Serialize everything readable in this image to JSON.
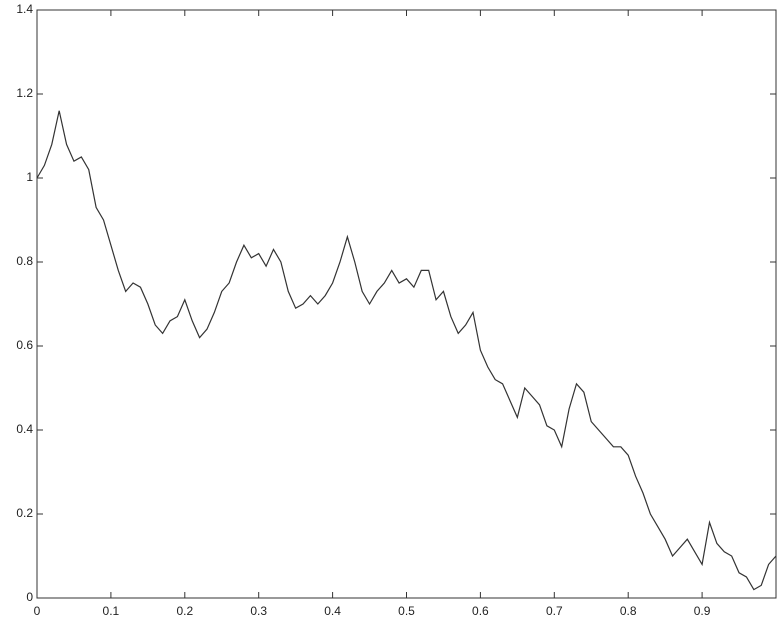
{
  "chart_data": {
    "type": "line",
    "x": [
      0,
      0.01,
      0.02,
      0.03,
      0.04,
      0.05,
      0.06,
      0.07,
      0.08,
      0.09,
      0.1,
      0.11,
      0.12,
      0.13,
      0.14,
      0.15,
      0.16,
      0.17,
      0.18,
      0.19,
      0.2,
      0.21,
      0.22,
      0.23,
      0.24,
      0.25,
      0.26,
      0.27,
      0.28,
      0.29,
      0.3,
      0.31,
      0.32,
      0.33,
      0.34,
      0.35,
      0.36,
      0.37,
      0.38,
      0.39,
      0.4,
      0.41,
      0.42,
      0.43,
      0.44,
      0.45,
      0.46,
      0.47,
      0.48,
      0.49,
      0.5,
      0.51,
      0.52,
      0.53,
      0.54,
      0.55,
      0.56,
      0.57,
      0.58,
      0.59,
      0.6,
      0.61,
      0.62,
      0.63,
      0.64,
      0.65,
      0.66,
      0.67,
      0.68,
      0.69,
      0.7,
      0.71,
      0.72,
      0.73,
      0.74,
      0.75,
      0.76,
      0.77,
      0.78,
      0.79,
      0.8,
      0.81,
      0.82,
      0.83,
      0.84,
      0.85,
      0.86,
      0.87,
      0.88,
      0.89,
      0.9,
      0.91,
      0.92,
      0.93,
      0.94,
      0.95,
      0.96,
      0.97,
      0.98,
      0.99,
      1
    ],
    "series": [
      {
        "color": "#333333",
        "values": [
          1.0,
          1.03,
          1.08,
          1.16,
          1.08,
          1.04,
          1.05,
          1.02,
          0.93,
          0.9,
          0.84,
          0.78,
          0.73,
          0.75,
          0.74,
          0.7,
          0.65,
          0.63,
          0.66,
          0.67,
          0.71,
          0.66,
          0.62,
          0.64,
          0.68,
          0.73,
          0.75,
          0.8,
          0.84,
          0.81,
          0.82,
          0.79,
          0.83,
          0.8,
          0.73,
          0.69,
          0.7,
          0.72,
          0.7,
          0.72,
          0.75,
          0.8,
          0.86,
          0.8,
          0.73,
          0.7,
          0.73,
          0.75,
          0.78,
          0.75,
          0.76,
          0.74,
          0.78,
          0.78,
          0.71,
          0.73,
          0.67,
          0.63,
          0.65,
          0.68,
          0.59,
          0.55,
          0.52,
          0.51,
          0.47,
          0.43,
          0.5,
          0.48,
          0.46,
          0.41,
          0.4,
          0.36,
          0.45,
          0.51,
          0.49,
          0.42,
          0.4,
          0.38,
          0.36,
          0.36,
          0.34,
          0.29,
          0.25,
          0.2,
          0.17,
          0.14,
          0.1,
          0.12,
          0.14,
          0.11,
          0.08,
          0.18,
          0.13,
          0.11,
          0.1,
          0.06,
          0.05,
          0.02,
          0.03,
          0.08,
          0.1
        ]
      }
    ],
    "xlim": [
      0,
      1
    ],
    "ylim": [
      0,
      1.4
    ],
    "xticks": [
      0,
      0.1,
      0.2,
      0.3,
      0.4,
      0.5,
      0.6,
      0.7,
      0.8,
      0.9
    ],
    "yticks": [
      0,
      0.2,
      0.4,
      0.6,
      0.8,
      1,
      1.2,
      1.4
    ]
  }
}
